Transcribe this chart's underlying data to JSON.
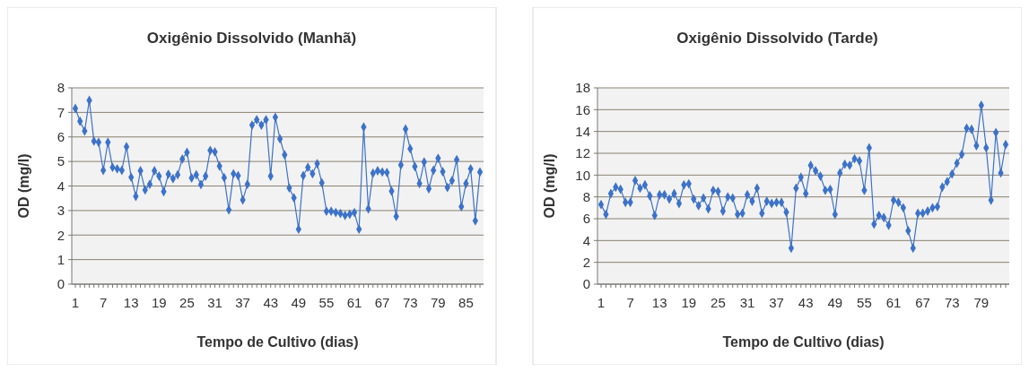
{
  "chart_data": [
    {
      "type": "line",
      "title": "Oxigênio Dissolvido (Manhã)",
      "xlabel": "Tempo de Cultivo (dias)",
      "ylabel": "OD (mg/l)",
      "categories": [
        "1",
        null,
        null,
        null,
        null,
        null,
        "7",
        null,
        null,
        null,
        null,
        null,
        "13",
        null,
        null,
        null,
        null,
        null,
        "19",
        null,
        null,
        null,
        null,
        null,
        "25",
        null,
        null,
        null,
        null,
        null,
        "31",
        null,
        null,
        null,
        null,
        null,
        "37",
        null,
        null,
        null,
        null,
        null,
        "43",
        null,
        null,
        null,
        null,
        null,
        "49",
        null,
        null,
        null,
        null,
        null,
        "55",
        null,
        null,
        null,
        null,
        null,
        "61",
        null,
        null,
        null,
        null,
        null,
        "67",
        null,
        null,
        null,
        null,
        null,
        "73",
        null,
        null,
        null,
        null,
        null,
        "79",
        null,
        null,
        null,
        null,
        null,
        "85",
        null,
        null,
        null
      ],
      "series": [
        {
          "color": "#3d72c8",
          "values": [
            7.16,
            6.64,
            6.24,
            7.49,
            5.83,
            5.78,
            4.64,
            5.78,
            4.76,
            4.7,
            4.64,
            5.6,
            4.36,
            3.58,
            4.62,
            3.84,
            4.07,
            4.62,
            4.4,
            3.77,
            4.48,
            4.3,
            4.46,
            5.1,
            5.37,
            4.33,
            4.46,
            4.06,
            4.4,
            5.45,
            5.39,
            4.81,
            4.34,
            3.03,
            4.5,
            4.42,
            3.43,
            4.07,
            6.48,
            6.7,
            6.48,
            6.7,
            4.4,
            6.8,
            5.92,
            5.27,
            3.92,
            3.52,
            2.24,
            4.42,
            4.76,
            4.5,
            4.91,
            4.13,
            2.97,
            2.97,
            2.92,
            2.88,
            2.8,
            2.85,
            2.92,
            2.24,
            6.4,
            3.07,
            4.52,
            4.62,
            4.57,
            4.55,
            3.79,
            2.76,
            4.86,
            6.32,
            5.52,
            4.79,
            4.1,
            4.98,
            3.89,
            4.64,
            5.13,
            4.58,
            3.94,
            4.22,
            5.07,
            3.16,
            4.1,
            4.7,
            2.58,
            4.57
          ]
        }
      ],
      "ylim": [
        0,
        8
      ],
      "yticks": [
        0,
        1,
        2,
        3,
        4,
        5,
        6,
        7,
        8
      ],
      "grid": "y",
      "marker": "diamond",
      "line_style": "solid"
    },
    {
      "type": "line",
      "title": "Oxigênio Dissolvido (Tarde)",
      "xlabel": "Tempo de Cultivo (dias)",
      "ylabel": "OD (mg/l)",
      "categories": [
        "1",
        null,
        null,
        null,
        null,
        null,
        "7",
        null,
        null,
        null,
        null,
        null,
        "13",
        null,
        null,
        null,
        null,
        null,
        "19",
        null,
        null,
        null,
        null,
        null,
        "25",
        null,
        null,
        null,
        null,
        null,
        "31",
        null,
        null,
        null,
        null,
        null,
        "37",
        null,
        null,
        null,
        null,
        null,
        "43",
        null,
        null,
        null,
        null,
        null,
        "49",
        null,
        null,
        null,
        null,
        null,
        "55",
        null,
        null,
        null,
        null,
        null,
        "61",
        null,
        null,
        null,
        null,
        null,
        "67",
        null,
        null,
        null,
        null,
        null,
        "73",
        null,
        null,
        null,
        null,
        null,
        "79",
        null,
        null,
        null,
        null,
        null
      ],
      "series": [
        {
          "color": "#3d72c8",
          "values": [
            7.3,
            6.4,
            8.3,
            8.9,
            8.7,
            7.5,
            7.5,
            9.5,
            8.8,
            9.1,
            8.1,
            6.3,
            8.2,
            8.2,
            7.8,
            8.3,
            7.4,
            9.1,
            9.2,
            7.8,
            7.2,
            7.9,
            6.9,
            8.6,
            8.5,
            6.7,
            8,
            7.9,
            6.4,
            6.5,
            8.2,
            7.6,
            8.8,
            6.5,
            7.6,
            7.4,
            7.5,
            7.5,
            6.6,
            3.3,
            8.8,
            9.8,
            8.3,
            10.9,
            10.4,
            9.9,
            8.6,
            8.7,
            6.4,
            10.2,
            11,
            10.9,
            11.5,
            11.3,
            8.6,
            12.5,
            5.5,
            6.3,
            6.1,
            5.4,
            7.7,
            7.5,
            7,
            4.9,
            3.3,
            6.5,
            6.5,
            6.7,
            7,
            7.1,
            8.9,
            9.4,
            10.1,
            11.1,
            11.9,
            14.3,
            14.2,
            12.7,
            16.4,
            12.5,
            7.7,
            13.9,
            10.2,
            12.8
          ]
        }
      ],
      "ylim": [
        0,
        18
      ],
      "yticks": [
        0,
        2,
        4,
        6,
        8,
        10,
        12,
        14,
        16,
        18
      ],
      "grid": "y",
      "marker": "diamond",
      "line_style": "solid"
    }
  ]
}
